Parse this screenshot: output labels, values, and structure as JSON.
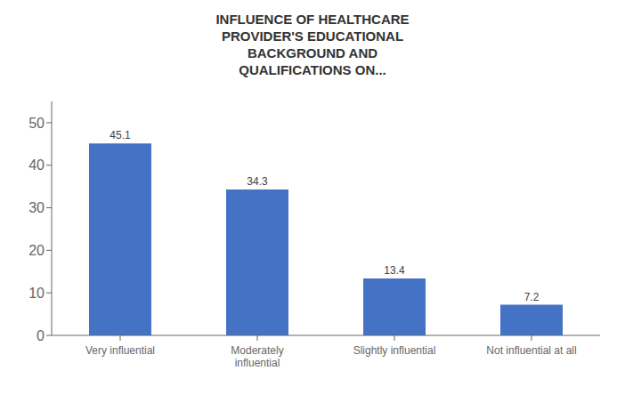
{
  "chart_data": {
    "type": "bar",
    "title": "INFLUENCE OF HEALTHCARE\nPROVIDER'S EDUCATIONAL\nBACKGROUND AND\nQUALIFICATIONS ON...",
    "categories": [
      "Very influential",
      "Moderately\ninfluential",
      "Slightly influential",
      "Not influential at all"
    ],
    "values": [
      45.1,
      34.3,
      13.4,
      7.2
    ],
    "color": "#4472C4",
    "ylim": [
      0,
      55
    ],
    "yticks": [
      0,
      10,
      20,
      30,
      40,
      50
    ],
    "grid": false,
    "data_labels": true
  }
}
